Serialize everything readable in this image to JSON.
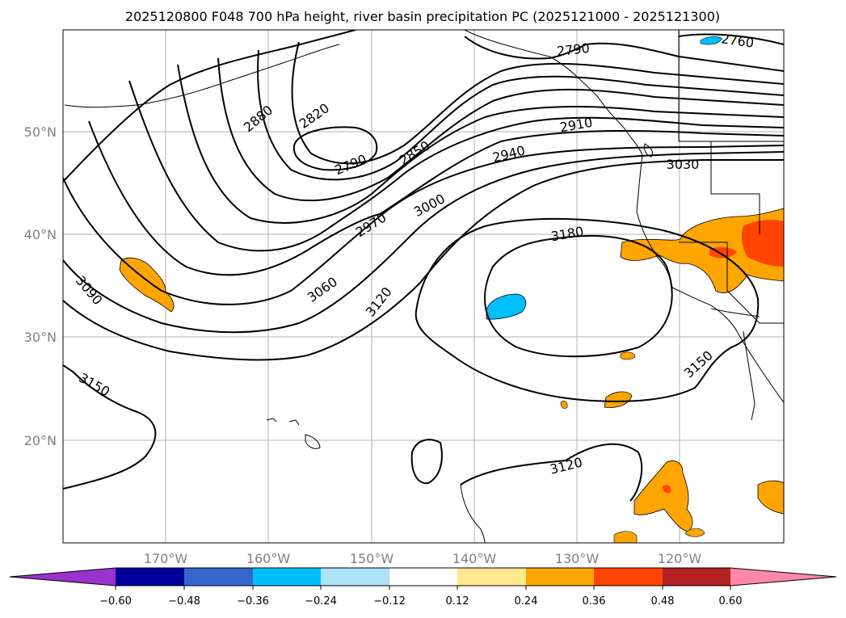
{
  "title": "2025120800 F048 700 hPa height, river basin precipitation PC (2025121000 - 2025121300)",
  "lat_labels": [
    "50°N",
    "40°N",
    "30°N",
    "20°N"
  ],
  "lon_labels": [
    "170°W",
    "160°W",
    "150°W",
    "140°W",
    "130°W",
    "120°W"
  ],
  "contour_labels": [
    "2760",
    "2790",
    "2790",
    "2820",
    "2850",
    "2880",
    "2910",
    "2940",
    "2970",
    "3000",
    "3030",
    "3060",
    "3090",
    "3120",
    "3120",
    "3150",
    "3150",
    "3180"
  ],
  "colorbar": {
    "ticks": [
      "−0.60",
      "−0.48",
      "−0.36",
      "−0.24",
      "−0.12",
      "0.12",
      "0.24",
      "0.36",
      "0.48",
      "0.60"
    ],
    "colors": {
      "under": "#9933cc",
      "c1": "#000099",
      "c2": "#3366cc",
      "c3": "#00bfff",
      "c4": "#ade2f8",
      "c5": "#ffffff",
      "c6": "#ffe98f",
      "c7": "#ffa500",
      "c8": "#ff4500",
      "c9": "#b22222",
      "over": "#ff88aa"
    }
  },
  "chart_data": {
    "type": "contour_map",
    "title": "2025120800 F048 700 hPa height, river basin precipitation PC (2025121000 - 2025121300)",
    "field": "700 hPa geopotential height (m)",
    "contour_interval": 30,
    "contour_levels_labeled": [
      2760,
      2790,
      2820,
      2850,
      2880,
      2910,
      2940,
      2970,
      3000,
      3030,
      3060,
      3090,
      3120,
      3150,
      3180
    ],
    "shading": "river basin precipitation PC",
    "colorbar_bounds": [
      -0.6,
      -0.48,
      -0.36,
      -0.24,
      -0.12,
      0.12,
      0.24,
      0.36,
      0.48,
      0.6
    ],
    "lon_range": [
      "180°W",
      "110°W"
    ],
    "lat_range": [
      "10°N",
      "60°N"
    ],
    "features": {
      "low_center": "near 48°N 150°W (2790)",
      "high_center": "near 36°N 135°W (3180)"
    }
  }
}
